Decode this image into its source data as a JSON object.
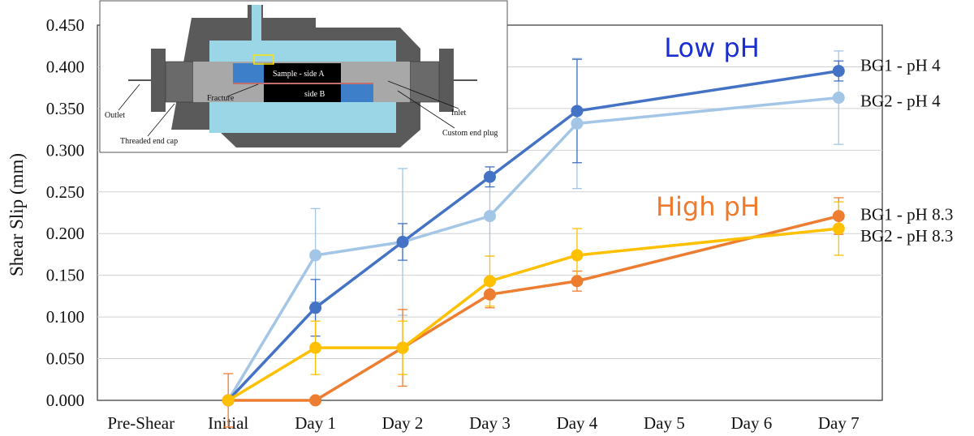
{
  "chart_data": {
    "type": "line",
    "title": "",
    "xlabel": "",
    "ylabel": "Shear Slip (mm)",
    "ylim": [
      0,
      0.45
    ],
    "yticks": [
      "0.000",
      "0.050",
      "0.100",
      "0.150",
      "0.200",
      "0.250",
      "0.300",
      "0.350",
      "0.400",
      "0.450"
    ],
    "categories": [
      "Pre-Shear",
      "Initial",
      "Day 1",
      "Day 2",
      "Day 3",
      "Day 4",
      "Day 5",
      "Day 6",
      "Day 7"
    ],
    "grid": true,
    "series": [
      {
        "name": "BG2 - pH 4",
        "color": "#a3c6e6",
        "x": [
          "Initial",
          "Day 1",
          "Day 2",
          "Day 3",
          "Day 4",
          "Day 7"
        ],
        "values": [
          0,
          0.174,
          0.19,
          0.221,
          0.332,
          0.363
        ],
        "err": [
          0,
          0.056,
          0.088,
          0.048,
          0.078,
          0.056
        ]
      },
      {
        "name": "BG1 - pH 4",
        "color": "#4472c4",
        "x": [
          "Initial",
          "Day 1",
          "Day 2",
          "Day 3",
          "Day 4",
          "Day 7"
        ],
        "values": [
          0,
          0.111,
          0.19,
          0.268,
          0.347,
          0.395
        ],
        "err": [
          0,
          0.034,
          0.022,
          0.012,
          0.062,
          0.012
        ]
      },
      {
        "name": "BG1 - pH 8.3",
        "color": "#ed7d31",
        "x": [
          "Initial",
          "Day 1",
          "Day 2",
          "Day 3",
          "Day 4",
          "Day 7"
        ],
        "values": [
          0,
          0,
          0.063,
          0.127,
          0.143,
          0.221
        ],
        "err": [
          0.032,
          0,
          0.046,
          0.016,
          0.012,
          0.022
        ]
      },
      {
        "name": "BG2 - pH 8.3",
        "color": "#ffc000",
        "x": [
          "Initial",
          "Day 1",
          "Day 2",
          "Day 3",
          "Day 4",
          "Day 7"
        ],
        "values": [
          0,
          0.063,
          0.063,
          0.143,
          0.174,
          0.206
        ],
        "err": [
          0,
          0.032,
          0.032,
          0.03,
          0.032,
          0.032
        ]
      }
    ],
    "annotations": [
      {
        "text": "Low pH",
        "color": "#1a2ed1"
      },
      {
        "text": "High pH",
        "color": "#ef7a2c"
      }
    ]
  },
  "inset": {
    "labels": {
      "sample_a": "Sample - side A",
      "side_b": "side B",
      "fracture": "Fracture",
      "inlet": "Inlet",
      "outlet": "Outlet",
      "threaded_end_cap": "Threaded end cap",
      "custom_end_plug": "Custom end plug"
    }
  }
}
